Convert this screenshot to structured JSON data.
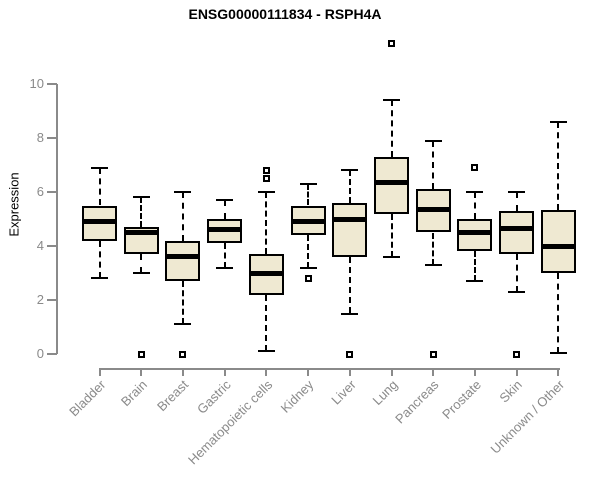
{
  "chart_data": {
    "type": "boxplot",
    "title": "ENSG00000111834 - RSPH4A",
    "ylabel": "Expression",
    "xlabel": "",
    "ylim": [
      0,
      10
    ],
    "yticks": [
      0,
      2,
      4,
      6,
      8,
      10
    ],
    "grid": false,
    "legend": "none",
    "categories": [
      "Bladder",
      "Brain",
      "Breast",
      "Gastric",
      "Hematopoietic cells",
      "Kidney",
      "Liver",
      "Lung",
      "Pancreas",
      "Prostate",
      "Skin",
      "Unknown / Other"
    ],
    "boxes": [
      {
        "category": "Bladder",
        "whisker_low": 2.8,
        "q1": 4.2,
        "median": 4.9,
        "q3": 5.5,
        "whisker_high": 6.9,
        "outliers": []
      },
      {
        "category": "Brain",
        "whisker_low": 3.0,
        "q1": 3.7,
        "median": 4.5,
        "q3": 4.7,
        "whisker_high": 5.8,
        "outliers": [
          0
        ]
      },
      {
        "category": "Breast",
        "whisker_low": 1.1,
        "q1": 2.7,
        "median": 3.6,
        "q3": 4.2,
        "whisker_high": 6.0,
        "outliers": [
          0
        ]
      },
      {
        "category": "Gastric",
        "whisker_low": 3.2,
        "q1": 4.1,
        "median": 4.6,
        "q3": 5.0,
        "whisker_high": 5.7,
        "outliers": []
      },
      {
        "category": "Hematopoietic cells",
        "whisker_low": 0.1,
        "q1": 2.2,
        "median": 3.0,
        "q3": 3.7,
        "whisker_high": 6.0,
        "outliers": [
          6.5,
          6.8
        ]
      },
      {
        "category": "Kidney",
        "whisker_low": 3.2,
        "q1": 4.4,
        "median": 4.9,
        "q3": 5.5,
        "whisker_high": 6.3,
        "outliers": [
          2.8
        ]
      },
      {
        "category": "Liver",
        "whisker_low": 1.5,
        "q1": 3.6,
        "median": 5.0,
        "q3": 5.6,
        "whisker_high": 6.8,
        "outliers": [
          0
        ]
      },
      {
        "category": "Lung",
        "whisker_low": 3.6,
        "q1": 5.2,
        "median": 6.35,
        "q3": 7.3,
        "whisker_high": 9.4,
        "outliers": [
          11.5
        ]
      },
      {
        "category": "Pancreas",
        "whisker_low": 3.3,
        "q1": 4.5,
        "median": 5.35,
        "q3": 6.1,
        "whisker_high": 7.9,
        "outliers": [
          0
        ]
      },
      {
        "category": "Prostate",
        "whisker_low": 2.7,
        "q1": 3.8,
        "median": 4.5,
        "q3": 5.0,
        "whisker_high": 6.0,
        "outliers": [
          6.9
        ]
      },
      {
        "category": "Skin",
        "whisker_low": 2.3,
        "q1": 3.7,
        "median": 4.65,
        "q3": 5.3,
        "whisker_high": 6.0,
        "outliers": [
          0
        ]
      },
      {
        "category": "Unknown / Other",
        "whisker_low": 0.05,
        "q1": 3.0,
        "median": 4.0,
        "q3": 5.35,
        "whisker_high": 8.6,
        "outliers": []
      }
    ],
    "colors": {
      "box_fill": "#EFE9D2",
      "box_border": "#000000",
      "median": "#000000",
      "whisker": "#000000",
      "axis": "#8a8a8a",
      "tick_label": "#8a8a8a",
      "title": "#000000"
    }
  }
}
